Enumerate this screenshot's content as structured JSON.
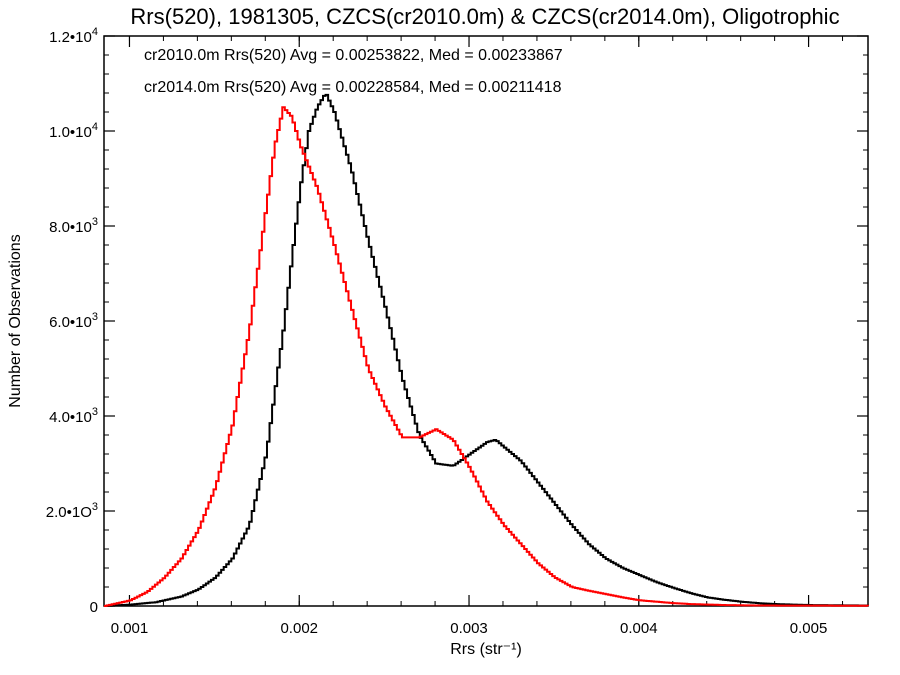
{
  "chart_data": {
    "type": "line",
    "title": "Rrs(520), 1981305, CZCS(cr2010.0m) & CZCS(cr2014.0m), Oligotrophic",
    "xlabel": "Rrs (str⁻¹)",
    "ylabel": "Number of Observations",
    "xlim": [
      0.00085,
      0.00535
    ],
    "ylim": [
      0,
      12000
    ],
    "x_ticks": [
      0.001,
      0.002,
      0.003,
      0.004,
      0.005
    ],
    "x_tick_labels": [
      "0.001",
      "0.002",
      "0.003",
      "0.004",
      "0.005"
    ],
    "y_ticks": [
      {
        "value": 0,
        "mantissa": "0",
        "exp": ""
      },
      {
        "value": 2000,
        "mantissa": "2.0•1O",
        "exp": "3"
      },
      {
        "value": 4000,
        "mantissa": "4.0•10",
        "exp": "3"
      },
      {
        "value": 6000,
        "mantissa": "6.0•10",
        "exp": "3"
      },
      {
        "value": 8000,
        "mantissa": "8.0•10",
        "exp": "3"
      },
      {
        "value": 10000,
        "mantissa": "1.0•10",
        "exp": "4"
      },
      {
        "value": 12000,
        "mantissa": "1.2•10",
        "exp": "4"
      }
    ],
    "legend": [
      {
        "text": "cr2010.0m Rrs(520) Avg = 0.00253822, Med = 0.00233867",
        "color": "#000000"
      },
      {
        "text": "cr2014.0m Rrs(520) Avg = 0.00228584, Med = 0.00211418",
        "color": "#ff0000"
      }
    ],
    "series": [
      {
        "color": "#000000",
        "points": [
          [
            0.00085,
            0
          ],
          [
            0.001,
            30
          ],
          [
            0.00115,
            80
          ],
          [
            0.0013,
            200
          ],
          [
            0.0014,
            350
          ],
          [
            0.0015,
            600
          ],
          [
            0.0016,
            1000
          ],
          [
            0.0017,
            1700
          ],
          [
            0.0018,
            3200
          ],
          [
            0.0019,
            5800
          ],
          [
            0.002,
            8800
          ],
          [
            0.00205,
            10000
          ],
          [
            0.0021,
            10500
          ],
          [
            0.00215,
            10800
          ],
          [
            0.0022,
            10400
          ],
          [
            0.0023,
            9200
          ],
          [
            0.0024,
            7700
          ],
          [
            0.0025,
            6300
          ],
          [
            0.0026,
            4800
          ],
          [
            0.0027,
            3600
          ],
          [
            0.0028,
            3000
          ],
          [
            0.0029,
            2950
          ],
          [
            0.003,
            3200
          ],
          [
            0.0031,
            3450
          ],
          [
            0.00315,
            3500
          ],
          [
            0.0032,
            3350
          ],
          [
            0.0033,
            3050
          ],
          [
            0.0034,
            2600
          ],
          [
            0.0035,
            2150
          ],
          [
            0.0036,
            1700
          ],
          [
            0.0037,
            1300
          ],
          [
            0.0038,
            1000
          ],
          [
            0.0039,
            800
          ],
          [
            0.004,
            650
          ],
          [
            0.0041,
            500
          ],
          [
            0.0042,
            380
          ],
          [
            0.0043,
            270
          ],
          [
            0.0044,
            180
          ],
          [
            0.0045,
            130
          ],
          [
            0.0046,
            90
          ],
          [
            0.0047,
            60
          ],
          [
            0.0048,
            40
          ],
          [
            0.0049,
            30
          ],
          [
            0.005,
            20
          ],
          [
            0.00535,
            10
          ]
        ]
      },
      {
        "color": "#ff0000",
        "points": [
          [
            0.00085,
            0
          ],
          [
            0.001,
            120
          ],
          [
            0.0011,
            300
          ],
          [
            0.0012,
            600
          ],
          [
            0.0013,
            1000
          ],
          [
            0.0014,
            1600
          ],
          [
            0.0015,
            2500
          ],
          [
            0.0016,
            3800
          ],
          [
            0.0017,
            5800
          ],
          [
            0.0018,
            8400
          ],
          [
            0.00185,
            9700
          ],
          [
            0.0019,
            10500
          ],
          [
            0.00195,
            10300
          ],
          [
            0.002,
            9700
          ],
          [
            0.0021,
            8800
          ],
          [
            0.0022,
            7600
          ],
          [
            0.0023,
            6300
          ],
          [
            0.0024,
            5000
          ],
          [
            0.0025,
            4200
          ],
          [
            0.0026,
            3550
          ],
          [
            0.0027,
            3550
          ],
          [
            0.0028,
            3720
          ],
          [
            0.0029,
            3500
          ],
          [
            0.003,
            2900
          ],
          [
            0.0031,
            2200
          ],
          [
            0.0032,
            1700
          ],
          [
            0.0033,
            1300
          ],
          [
            0.0034,
            900
          ],
          [
            0.0035,
            600
          ],
          [
            0.0036,
            400
          ],
          [
            0.0037,
            320
          ],
          [
            0.0038,
            250
          ],
          [
            0.0039,
            180
          ],
          [
            0.004,
            120
          ],
          [
            0.0041,
            90
          ],
          [
            0.0042,
            60
          ],
          [
            0.0043,
            40
          ],
          [
            0.0044,
            30
          ],
          [
            0.0045,
            20
          ],
          [
            0.0047,
            10
          ],
          [
            0.00535,
            5
          ]
        ]
      }
    ]
  }
}
